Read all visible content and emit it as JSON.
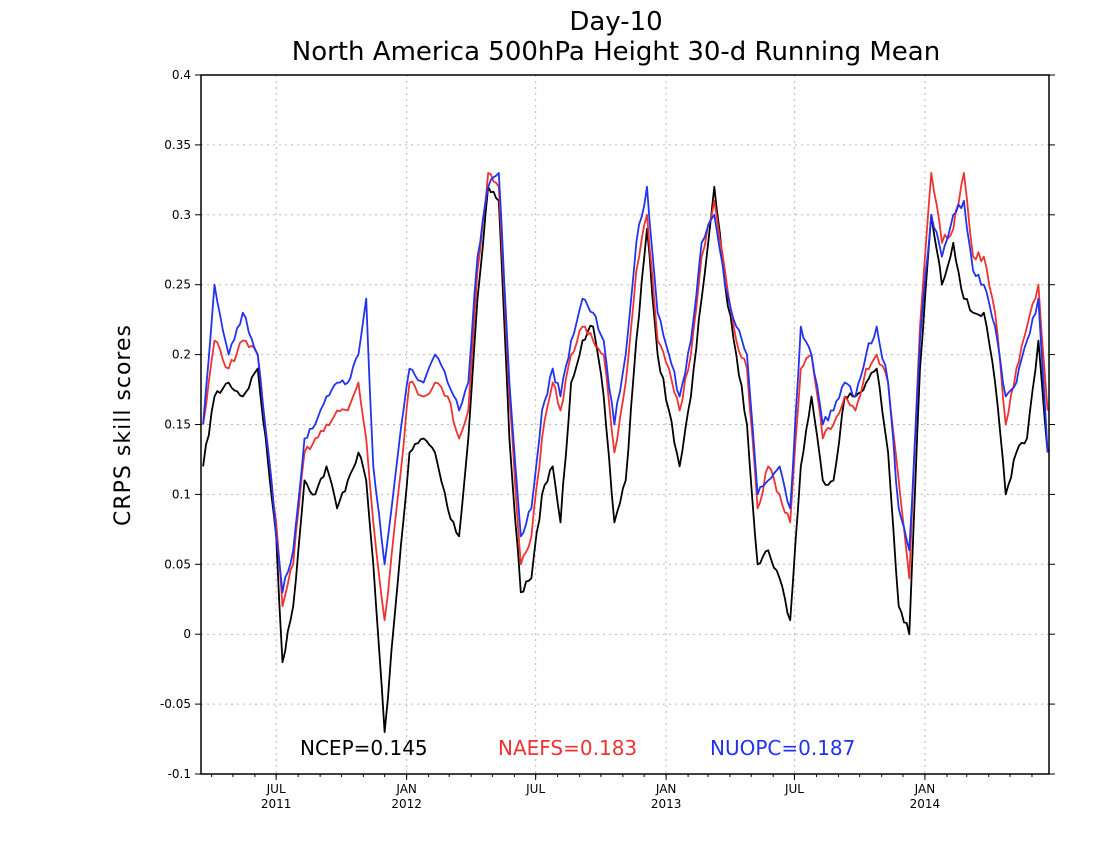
{
  "chart_data": {
    "type": "line",
    "title": "Day-10",
    "subtitle": "North America 500hPa Height 30-d Running Mean",
    "xlabel": "",
    "ylabel": "CRPS skill scores",
    "ylim": [
      -0.1,
      0.4
    ],
    "xlim": [
      "2011-03-17",
      "2014-06-25"
    ],
    "grid": true,
    "y_ticks": [
      "-0.1",
      "-0.05",
      "0",
      "0.05",
      "0.1",
      "0.15",
      "0.2",
      "0.25",
      "0.3",
      "0.35",
      "0.4"
    ],
    "x_ticks": [
      {
        "date": "2011-07-01",
        "month": "JUL",
        "year": "2011"
      },
      {
        "date": "2012-01-01",
        "month": "JAN",
        "year": "2012"
      },
      {
        "date": "2012-07-01",
        "month": "JUL",
        "year": ""
      },
      {
        "date": "2013-01-01",
        "month": "JAN",
        "year": "2013"
      },
      {
        "date": "2013-07-01",
        "month": "JUL",
        "year": ""
      },
      {
        "date": "2014-01-01",
        "month": "JAN",
        "year": "2014"
      }
    ],
    "x": [
      "2011-03-20",
      "2011-04-05",
      "2011-04-25",
      "2011-05-15",
      "2011-06-05",
      "2011-06-20",
      "2011-07-01",
      "2011-07-10",
      "2011-07-25",
      "2011-08-10",
      "2011-08-25",
      "2011-09-10",
      "2011-09-25",
      "2011-10-10",
      "2011-10-25",
      "2011-11-05",
      "2011-11-15",
      "2011-12-01",
      "2011-12-20",
      "2012-01-05",
      "2012-01-25",
      "2012-02-10",
      "2012-02-28",
      "2012-03-15",
      "2012-03-28",
      "2012-04-10",
      "2012-04-25",
      "2012-05-10",
      "2012-05-25",
      "2012-06-10",
      "2012-06-25",
      "2012-07-10",
      "2012-07-25",
      "2012-08-05",
      "2012-08-20",
      "2012-09-05",
      "2012-09-20",
      "2012-10-05",
      "2012-10-20",
      "2012-11-05",
      "2012-11-20",
      "2012-12-05",
      "2012-12-20",
      "2013-01-05",
      "2013-01-20",
      "2013-02-05",
      "2013-02-20",
      "2013-03-10",
      "2013-03-25",
      "2013-04-10",
      "2013-04-25",
      "2013-05-10",
      "2013-05-25",
      "2013-06-10",
      "2013-06-25",
      "2013-07-10",
      "2013-07-25",
      "2013-08-10",
      "2013-08-25",
      "2013-09-10",
      "2013-09-25",
      "2013-10-10",
      "2013-10-25",
      "2013-11-10",
      "2013-11-25",
      "2013-12-10",
      "2013-12-25",
      "2014-01-10",
      "2014-01-25",
      "2014-02-10",
      "2014-02-25",
      "2014-03-10",
      "2014-03-25",
      "2014-04-10",
      "2014-04-25",
      "2014-05-10",
      "2014-05-25",
      "2014-06-10",
      "2014-06-23"
    ],
    "series": [
      {
        "name": "NCEP",
        "color": "#000000",
        "values": [
          0.12,
          0.17,
          0.18,
          0.17,
          0.19,
          0.12,
          0.07,
          -0.02,
          0.02,
          0.11,
          0.1,
          0.12,
          0.09,
          0.11,
          0.13,
          0.11,
          0.05,
          -0.07,
          0.04,
          0.13,
          0.14,
          0.13,
          0.09,
          0.07,
          0.14,
          0.24,
          0.32,
          0.31,
          0.14,
          0.03,
          0.04,
          0.1,
          0.12,
          0.08,
          0.18,
          0.21,
          0.22,
          0.17,
          0.08,
          0.11,
          0.21,
          0.29,
          0.2,
          0.16,
          0.12,
          0.17,
          0.24,
          0.32,
          0.25,
          0.2,
          0.15,
          0.05,
          0.06,
          0.04,
          0.01,
          0.12,
          0.17,
          0.11,
          0.11,
          0.17,
          0.17,
          0.18,
          0.19,
          0.13,
          0.02,
          0.0,
          0.19,
          0.3,
          0.25,
          0.28,
          0.24,
          0.23,
          0.23,
          0.18,
          0.1,
          0.13,
          0.14,
          0.21,
          0.13
        ]
      },
      {
        "name": "NAEFS",
        "color": "#ee3333",
        "values": [
          0.15,
          0.21,
          0.19,
          0.21,
          0.2,
          0.13,
          0.08,
          0.02,
          0.05,
          0.13,
          0.14,
          0.15,
          0.16,
          0.16,
          0.18,
          0.14,
          0.08,
          0.01,
          0.1,
          0.18,
          0.17,
          0.18,
          0.17,
          0.14,
          0.16,
          0.26,
          0.33,
          0.32,
          0.17,
          0.05,
          0.07,
          0.14,
          0.18,
          0.16,
          0.2,
          0.22,
          0.21,
          0.2,
          0.13,
          0.18,
          0.26,
          0.3,
          0.21,
          0.19,
          0.16,
          0.2,
          0.27,
          0.31,
          0.26,
          0.21,
          0.19,
          0.09,
          0.12,
          0.1,
          0.08,
          0.19,
          0.2,
          0.14,
          0.15,
          0.17,
          0.16,
          0.19,
          0.2,
          0.18,
          0.11,
          0.04,
          0.22,
          0.33,
          0.28,
          0.29,
          0.33,
          0.27,
          0.27,
          0.23,
          0.15,
          0.19,
          0.22,
          0.25,
          0.16
        ]
      },
      {
        "name": "NUOPC",
        "color": "#2233ee",
        "values": [
          0.15,
          0.25,
          0.2,
          0.23,
          0.2,
          0.13,
          0.07,
          0.03,
          0.06,
          0.14,
          0.15,
          0.17,
          0.18,
          0.18,
          0.2,
          0.24,
          0.12,
          0.05,
          0.13,
          0.19,
          0.18,
          0.2,
          0.18,
          0.16,
          0.18,
          0.27,
          0.32,
          0.33,
          0.18,
          0.07,
          0.09,
          0.16,
          0.19,
          0.17,
          0.21,
          0.24,
          0.23,
          0.21,
          0.15,
          0.2,
          0.28,
          0.32,
          0.23,
          0.2,
          0.17,
          0.21,
          0.28,
          0.3,
          0.25,
          0.22,
          0.2,
          0.1,
          0.11,
          0.12,
          0.09,
          0.22,
          0.2,
          0.15,
          0.16,
          0.18,
          0.17,
          0.2,
          0.22,
          0.18,
          0.09,
          0.06,
          0.21,
          0.3,
          0.27,
          0.3,
          0.31,
          0.26,
          0.25,
          0.22,
          0.17,
          0.18,
          0.21,
          0.24,
          0.13
        ]
      }
    ],
    "legend": [
      {
        "text": "NCEP=0.145",
        "color": "#000000"
      },
      {
        "text": "NAEFS=0.183",
        "color": "#ee3333"
      },
      {
        "text": "NUOPC=0.187",
        "color": "#2233ee"
      }
    ],
    "legend_position": "bottom-center"
  }
}
